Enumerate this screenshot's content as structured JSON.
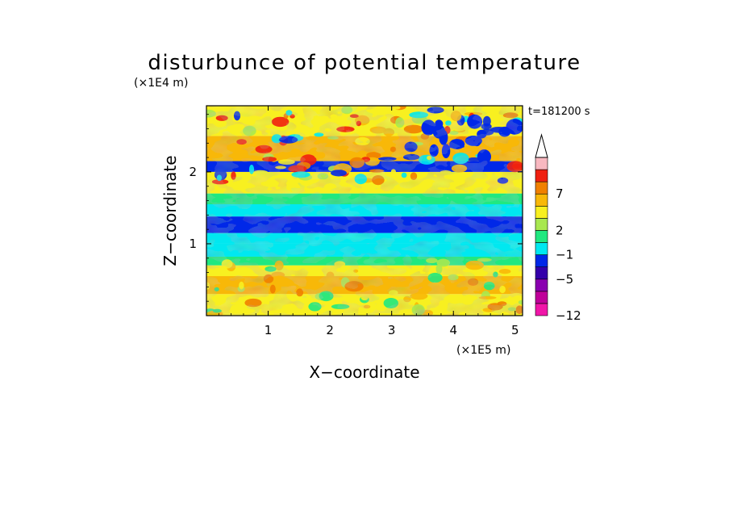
{
  "chart_data": {
    "type": "heatmap",
    "title": "disturbunce of potential temperature",
    "time_label": "t=181200 s",
    "xlabel": "X−coordinate",
    "ylabel": "Z−coordinate",
    "x_unit": "(×1E5 m)",
    "y_unit": "(×1E4 m)",
    "xlim": [
      0,
      5.12
    ],
    "ylim": [
      0,
      2.92
    ],
    "x_ticks": [
      {
        "value": 1,
        "label": "1"
      },
      {
        "value": 2,
        "label": "2"
      },
      {
        "value": 3,
        "label": "3"
      },
      {
        "value": 4,
        "label": "4"
      },
      {
        "value": 5,
        "label": "5"
      }
    ],
    "y_ticks": [
      {
        "value": 1,
        "label": "1"
      },
      {
        "value": 2,
        "label": "2"
      }
    ],
    "colorbar": {
      "levels": [
        {
          "color": "#f016a8",
          "label": "−12"
        },
        {
          "color": "#c0009a",
          "label": ""
        },
        {
          "color": "#8a00b0",
          "label": ""
        },
        {
          "color": "#3400aa",
          "label": "−5"
        },
        {
          "color": "#0028e8",
          "label": ""
        },
        {
          "color": "#00e8f0",
          "label": "−1"
        },
        {
          "color": "#20e880",
          "label": ""
        },
        {
          "color": "#a8e850",
          "label": "2"
        },
        {
          "color": "#f8f020",
          "label": ""
        },
        {
          "color": "#f8b808",
          "label": ""
        },
        {
          "color": "#f08000",
          "label": "7"
        },
        {
          "color": "#f02010",
          "label": ""
        },
        {
          "color": "#f8b8c0",
          "label": ""
        }
      ],
      "extend_max": true
    },
    "bands": [
      {
        "z_min": 0.0,
        "z_max": 0.3,
        "level": 8
      },
      {
        "z_min": 0.3,
        "z_max": 0.55,
        "level": 9
      },
      {
        "z_min": 0.55,
        "z_max": 0.7,
        "level": 8
      },
      {
        "z_min": 0.7,
        "z_max": 0.82,
        "level": 6
      },
      {
        "z_min": 0.82,
        "z_max": 1.0,
        "level": 5
      },
      {
        "z_min": 1.0,
        "z_max": 1.15,
        "level": 5
      },
      {
        "z_min": 1.15,
        "z_max": 1.38,
        "level": 4
      },
      {
        "z_min": 1.38,
        "z_max": 1.55,
        "level": 5
      },
      {
        "z_min": 1.55,
        "z_max": 1.7,
        "level": 6
      },
      {
        "z_min": 1.7,
        "z_max": 2.0,
        "level": 8
      },
      {
        "z_min": 2.0,
        "z_max": 2.15,
        "level": 4
      },
      {
        "z_min": 2.15,
        "z_max": 2.5,
        "level": 9
      },
      {
        "z_min": 2.5,
        "z_max": 2.92,
        "level": 8
      }
    ]
  }
}
